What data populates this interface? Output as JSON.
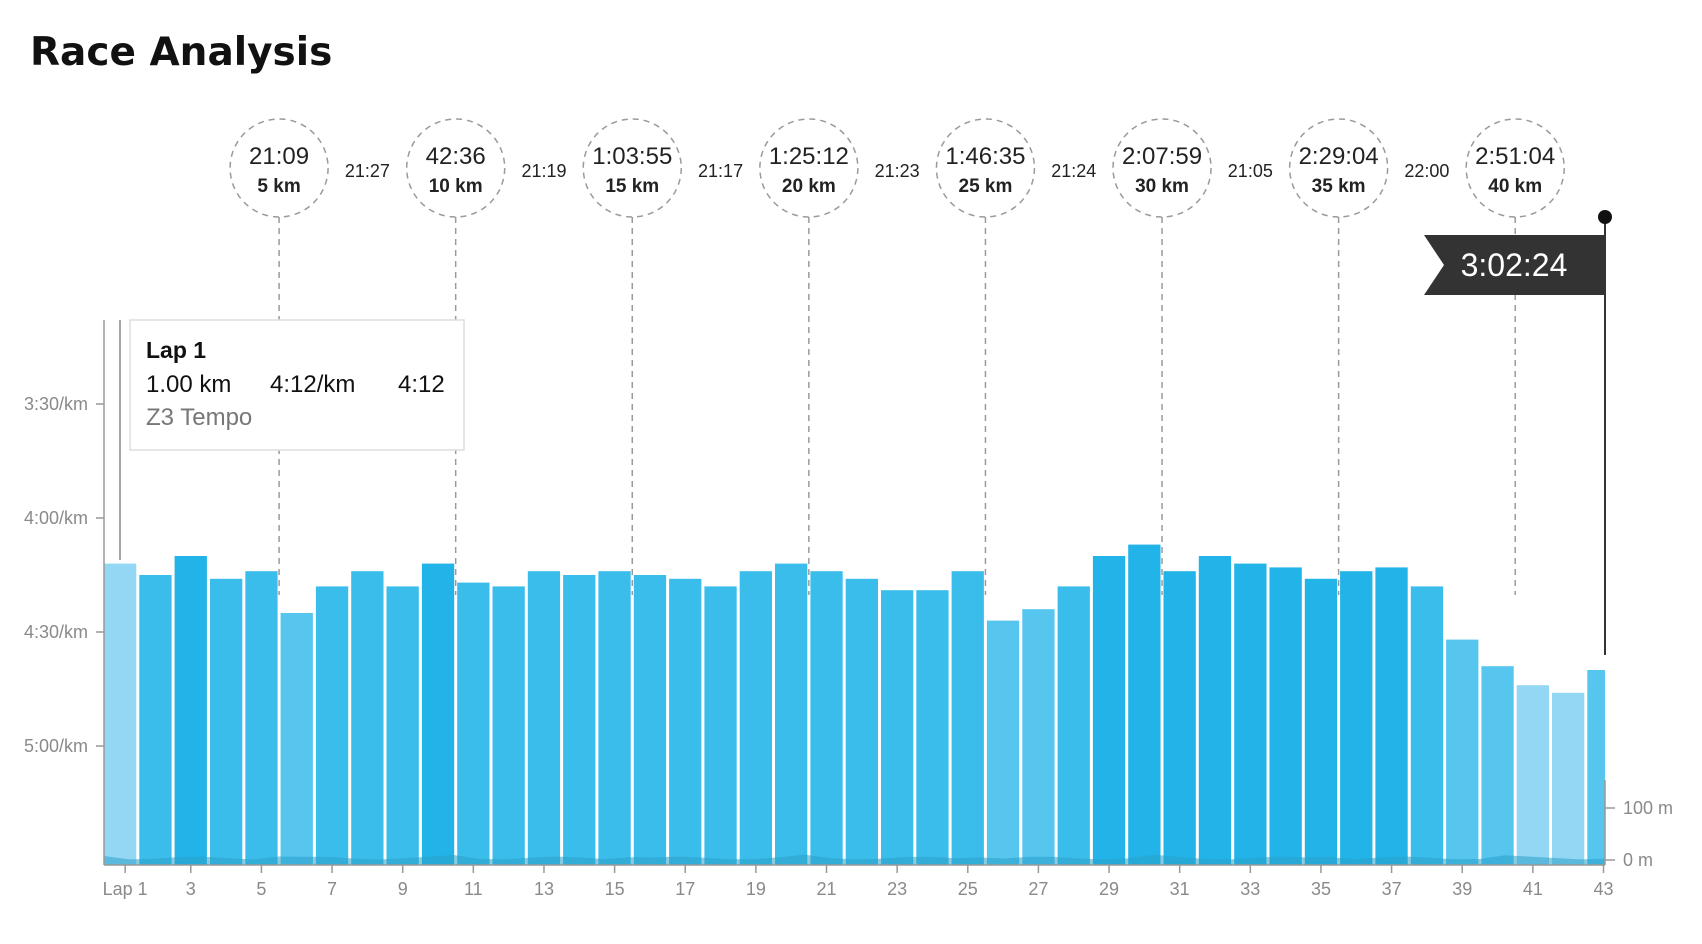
{
  "title": "Race Analysis",
  "colors": {
    "bar_dark": "#22b3e8",
    "bar_mid": "#3bbdec",
    "bar_light": "#56c6ef",
    "bar_lighter": "#94d7f4",
    "elevation": "#2aa0c8",
    "finish_flag": "#333333",
    "checkpoint_line": "#9a9a9a"
  },
  "tooltip": {
    "lap": "Lap 1",
    "distance": "1.00 km",
    "pace": "4:12/km",
    "time": "4:12",
    "zone": "Z3 Tempo"
  },
  "finish_time": "3:02:24",
  "checkpoints": [
    {
      "time": "21:09",
      "distance": "5 km",
      "lap": 5.5
    },
    {
      "time": "42:36",
      "distance": "10 km",
      "lap": 10.5
    },
    {
      "time": "1:03:55",
      "distance": "15 km",
      "lap": 15.5
    },
    {
      "time": "1:25:12",
      "distance": "20 km",
      "lap": 20.5
    },
    {
      "time": "1:46:35",
      "distance": "25 km",
      "lap": 25.5
    },
    {
      "time": "2:07:59",
      "distance": "30 km",
      "lap": 30.5
    },
    {
      "time": "2:29:04",
      "distance": "35 km",
      "lap": 35.5
    },
    {
      "time": "2:51:04",
      "distance": "40 km",
      "lap": 40.5
    }
  ],
  "splits": [
    "21:27",
    "21:19",
    "21:17",
    "21:23",
    "21:24",
    "21:05",
    "22:00"
  ],
  "chart_data": {
    "type": "bar",
    "x_label_lap_prefix": "Lap 1",
    "x_ticks": [
      1,
      3,
      5,
      7,
      9,
      11,
      13,
      15,
      17,
      19,
      21,
      23,
      25,
      27,
      29,
      31,
      33,
      35,
      37,
      39,
      41,
      43
    ],
    "x_tick_labels": [
      "Lap 1",
      "3",
      "5",
      "7",
      "9",
      "11",
      "13",
      "15",
      "17",
      "19",
      "21",
      "23",
      "25",
      "27",
      "29",
      "31",
      "33",
      "35",
      "37",
      "39",
      "41",
      "43"
    ],
    "laps": [
      1,
      2,
      3,
      4,
      5,
      6,
      7,
      8,
      9,
      10,
      11,
      12,
      13,
      14,
      15,
      16,
      17,
      18,
      19,
      20,
      21,
      22,
      23,
      24,
      25,
      26,
      27,
      28,
      29,
      30,
      31,
      32,
      33,
      34,
      35,
      36,
      37,
      38,
      39,
      40,
      41,
      42,
      43
    ],
    "pace_sec_per_km": [
      252,
      255,
      250,
      256,
      254,
      265,
      258,
      254,
      258,
      252,
      257,
      258,
      254,
      255,
      254,
      255,
      256,
      258,
      254,
      252,
      254,
      256,
      259,
      259,
      254,
      267,
      264,
      258,
      250,
      247,
      254,
      250,
      252,
      253,
      256,
      254,
      253,
      258,
      272,
      279,
      284,
      286,
      280
    ],
    "color_class": [
      "lighter",
      "mid",
      "dark",
      "mid",
      "mid",
      "light",
      "mid",
      "mid",
      "mid",
      "dark",
      "mid",
      "mid",
      "mid",
      "mid",
      "mid",
      "mid",
      "mid",
      "mid",
      "mid",
      "mid",
      "mid",
      "mid",
      "mid",
      "mid",
      "mid",
      "light",
      "light",
      "mid",
      "dark",
      "dark",
      "dark",
      "dark",
      "dark",
      "dark",
      "dark",
      "dark",
      "dark",
      "mid",
      "light",
      "light",
      "lighter",
      "lighter",
      "light"
    ],
    "y_ticks": [
      {
        "pace_sec": 210,
        "label": "3:30/km"
      },
      {
        "pace_sec": 240,
        "label": "4:00/km"
      },
      {
        "pace_sec": 270,
        "label": "4:30/km"
      },
      {
        "pace_sec": 300,
        "label": "5:00/km"
      }
    ],
    "elevation_ticks": [
      {
        "m": 100,
        "label": "100 m"
      },
      {
        "m": 0,
        "label": "0 m"
      }
    ],
    "y_range_sec": [
      188,
      330
    ]
  }
}
